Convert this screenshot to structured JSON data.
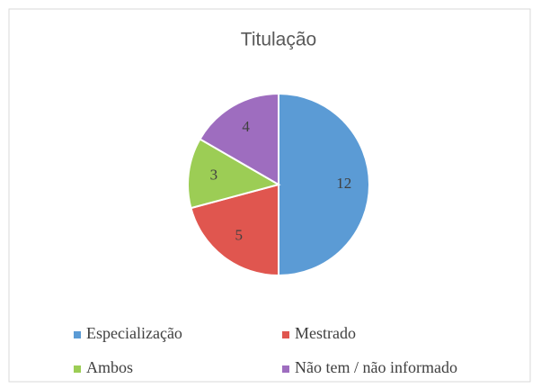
{
  "chart_data": {
    "type": "pie",
    "title": "Titulação",
    "categories": [
      "Especialização",
      "Mestrado",
      "Ambos",
      "Não tem / não informado"
    ],
    "values": [
      12,
      5,
      3,
      4
    ],
    "colors": [
      "#5b9bd5",
      "#e0564f",
      "#9ccd55",
      "#9e6dbf"
    ]
  }
}
